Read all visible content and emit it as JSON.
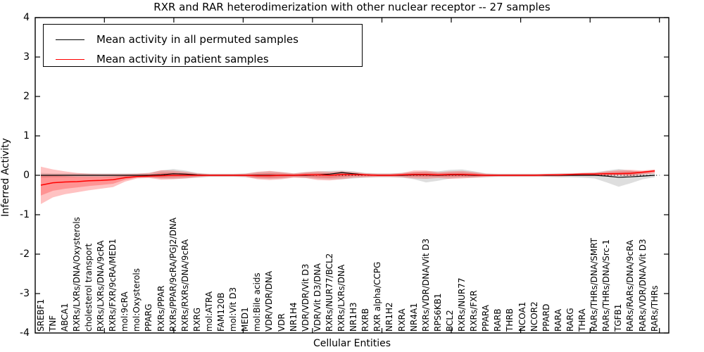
{
  "chart_data": {
    "type": "line",
    "title": "RXR and RAR heterodimerization with other nuclear receptor -- 27 samples",
    "xlabel": "Cellular Entities",
    "ylabel": "Inferred Activity",
    "ylim": [
      -4,
      4
    ],
    "ytick_labels": [
      "4",
      "3",
      "2",
      "1",
      "0",
      "-1",
      "-2",
      "-3",
      "-4"
    ],
    "grid": false,
    "legend_position": "upper left",
    "zero_line": "dotted",
    "categories": [
      "SREBF1",
      "TNF",
      "ABCA1",
      "RXRs/LXRs/DNA/Oxysterols",
      "cholesterol transport",
      "RXRs/LXRs/DNA/9cRA",
      "RXRs/FXR/9cRA/MED1",
      "mol:9cRA",
      "mol:Oxysterols",
      "PPARG",
      "RXRs/PPAR",
      "RXRs/PPAR/9cRA/PGJ2/DNA",
      "RXRs/RXRs/DNA/9cRA",
      "RXRG",
      "mol:ATRA",
      "FAM120B",
      "mol:Vit D3",
      "MED1",
      "mol:Bile acids",
      "VDR/VDR/DNA",
      "VDR",
      "NR1H4",
      "VDR/VDR/Vit D3",
      "VDR/Vit D3/DNA",
      "RXRs/NUR77/BCL2",
      "RXRs/LXRs/DNA",
      "NR1H3",
      "RXRB",
      "RXR alpha/CCPG",
      "NR1H2",
      "RXRA",
      "NR4A1",
      "RXRs/VDR/DNA/Vit D3",
      "RPS6KB1",
      "BCL2",
      "RXRs/NUR77",
      "RXRs/FXR",
      "PPARA",
      "RARB",
      "THRB",
      "NCOA1",
      "NCOR2",
      "PPARD",
      "RARA",
      "RARG",
      "THRA",
      "RARs/THRs/DNA/SMRT",
      "RARs/THRs/DNA/Src-1",
      "TGFB1",
      "RARs/RARs/DNA/9cRA",
      "RARs/VDR/DNA/Vit D3",
      "RARs/THRs"
    ],
    "series": [
      {
        "name": "Mean activity in all permuted samples",
        "color": "#000000",
        "band_color": "#888888",
        "values": [
          0,
          0,
          0,
          0,
          0,
          0,
          0,
          0,
          0,
          0,
          0.01,
          0.04,
          0.03,
          0.01,
          0,
          0,
          0,
          0,
          0,
          0,
          0,
          0,
          0,
          0.01,
          0.03,
          0.07,
          0.04,
          0.01,
          0,
          0,
          0,
          0.01,
          0.01,
          0,
          0.01,
          0.01,
          0,
          0,
          0,
          0,
          0,
          0,
          0,
          0,
          0,
          0,
          0,
          -0.02,
          -0.05,
          -0.04,
          -0.02,
          0
        ],
        "band_upper": [
          0.06,
          0.05,
          0.05,
          0.05,
          0.05,
          0.05,
          0.05,
          0.05,
          0.05,
          0.06,
          0.12,
          0.16,
          0.12,
          0.06,
          0.04,
          0.04,
          0.04,
          0.05,
          0.08,
          0.1,
          0.08,
          0.05,
          0.08,
          0.1,
          0.11,
          0.12,
          0.1,
          0.06,
          0.05,
          0.05,
          0.06,
          0.08,
          0.1,
          0.1,
          0.14,
          0.15,
          0.1,
          0.05,
          0.04,
          0.04,
          0.04,
          0.04,
          0.04,
          0.05,
          0.05,
          0.06,
          0.07,
          0.12,
          0.16,
          0.12,
          0.08,
          0.06
        ],
        "band_lower": [
          -0.06,
          -0.05,
          -0.05,
          -0.05,
          -0.05,
          -0.05,
          -0.05,
          -0.05,
          -0.05,
          -0.06,
          -0.08,
          -0.09,
          -0.08,
          -0.06,
          -0.04,
          -0.04,
          -0.04,
          -0.05,
          -0.08,
          -0.09,
          -0.08,
          -0.05,
          -0.07,
          -0.09,
          -0.1,
          -0.1,
          -0.08,
          -0.06,
          -0.05,
          -0.05,
          -0.06,
          -0.1,
          -0.18,
          -0.14,
          -0.08,
          -0.06,
          -0.06,
          -0.05,
          -0.04,
          -0.04,
          -0.04,
          -0.04,
          -0.04,
          -0.05,
          -0.05,
          -0.06,
          -0.08,
          -0.18,
          -0.29,
          -0.2,
          -0.1,
          -0.05
        ]
      },
      {
        "name": "Mean activity in patient samples",
        "color": "#ff0000",
        "band_color": "#ff0000",
        "values": [
          -0.25,
          -0.19,
          -0.17,
          -0.16,
          -0.14,
          -0.13,
          -0.11,
          -0.06,
          -0.03,
          -0.02,
          -0.01,
          0,
          0,
          0,
          0,
          0,
          0,
          0,
          -0.01,
          -0.01,
          0,
          0,
          0.01,
          0.01,
          0,
          0.02,
          0.02,
          0.01,
          0,
          0,
          0.01,
          0.02,
          0.02,
          0.01,
          0.02,
          0.02,
          0.01,
          0,
          0,
          0,
          0,
          0,
          0.01,
          0.01,
          0.02,
          0.03,
          0.03,
          0.04,
          0.04,
          0.05,
          0.08,
          0.11
        ],
        "band_upper": [
          0.22,
          0.15,
          0.1,
          0.06,
          0.04,
          0.03,
          0.03,
          0.03,
          0.04,
          0.06,
          0.13,
          0.12,
          0.09,
          0.05,
          0.03,
          0.03,
          0.03,
          0.04,
          0.09,
          0.11,
          0.08,
          0.05,
          0.08,
          0.1,
          0.09,
          0.1,
          0.08,
          0.05,
          0.04,
          0.04,
          0.06,
          0.12,
          0.12,
          0.08,
          0.1,
          0.11,
          0.08,
          0.04,
          0.03,
          0.03,
          0.03,
          0.03,
          0.03,
          0.04,
          0.05,
          0.06,
          0.07,
          0.1,
          0.13,
          0.14,
          0.12,
          0.15
        ],
        "band_lower": [
          -0.73,
          -0.56,
          -0.48,
          -0.43,
          -0.38,
          -0.34,
          -0.3,
          -0.16,
          -0.08,
          -0.07,
          -0.11,
          -0.1,
          -0.08,
          -0.05,
          -0.03,
          -0.03,
          -0.03,
          -0.04,
          -0.1,
          -0.12,
          -0.1,
          -0.06,
          -0.07,
          -0.12,
          -0.13,
          -0.1,
          -0.06,
          -0.05,
          -0.04,
          -0.04,
          -0.05,
          -0.08,
          -0.09,
          -0.07,
          -0.09,
          -0.08,
          -0.06,
          -0.04,
          -0.03,
          -0.03,
          -0.03,
          -0.03,
          -0.03,
          -0.03,
          -0.02,
          -0.02,
          -0.02,
          -0.01,
          0,
          -0.02,
          0.02,
          0.05
        ]
      }
    ]
  }
}
